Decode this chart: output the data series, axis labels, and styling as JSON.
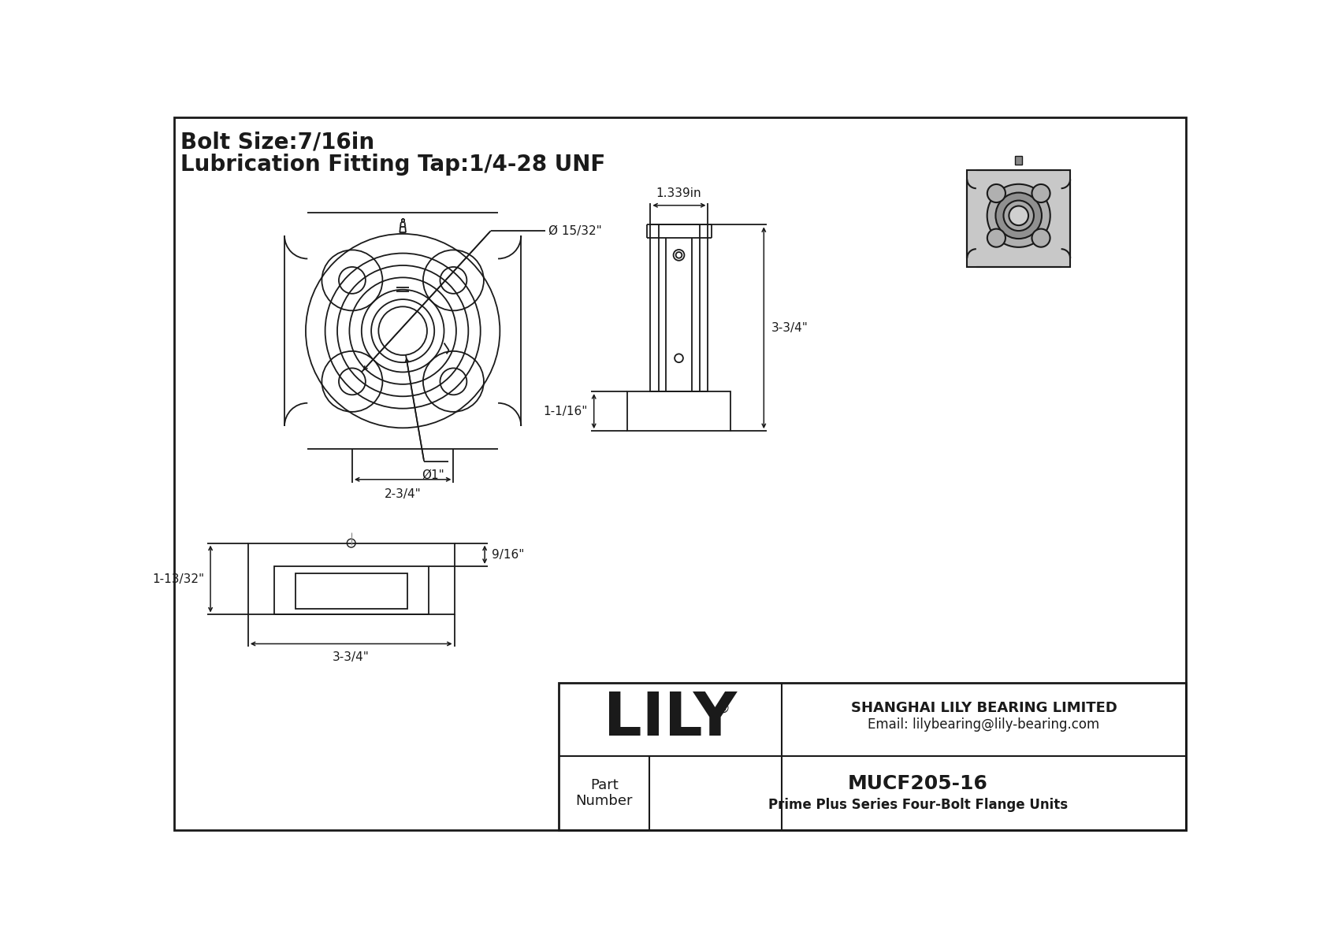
{
  "bg_color": "#ffffff",
  "line_color": "#1a1a1a",
  "title_line1": "Bolt Size:7/16in",
  "title_line2": "Lubrication Fitting Tap:1/4-28 UNF",
  "title_fontsize": 20,
  "company_name": "SHANGHAI LILY BEARING LIMITED",
  "company_email": "Email: lilybearing@lily-bearing.com",
  "part_number": "MUCF205-16",
  "part_series": "Prime Plus Series Four-Bolt Flange Units",
  "brand": "LILY",
  "brand_registered": "®",
  "dim_bolt_circle_label": "Ø 15/32\"",
  "dim_bore_label": "Ø1\"",
  "dim_bolt_spacing_label": "2-3/4\"",
  "dim_height_label": "3-3/4\"",
  "dim_width_label": "1.339in",
  "dim_base_label": "1-1/16\"",
  "dim_bottom_width": "3-3/4\"",
  "dim_bottom_height": "9/16\"",
  "dim_bottom_side": "1-13/32\""
}
